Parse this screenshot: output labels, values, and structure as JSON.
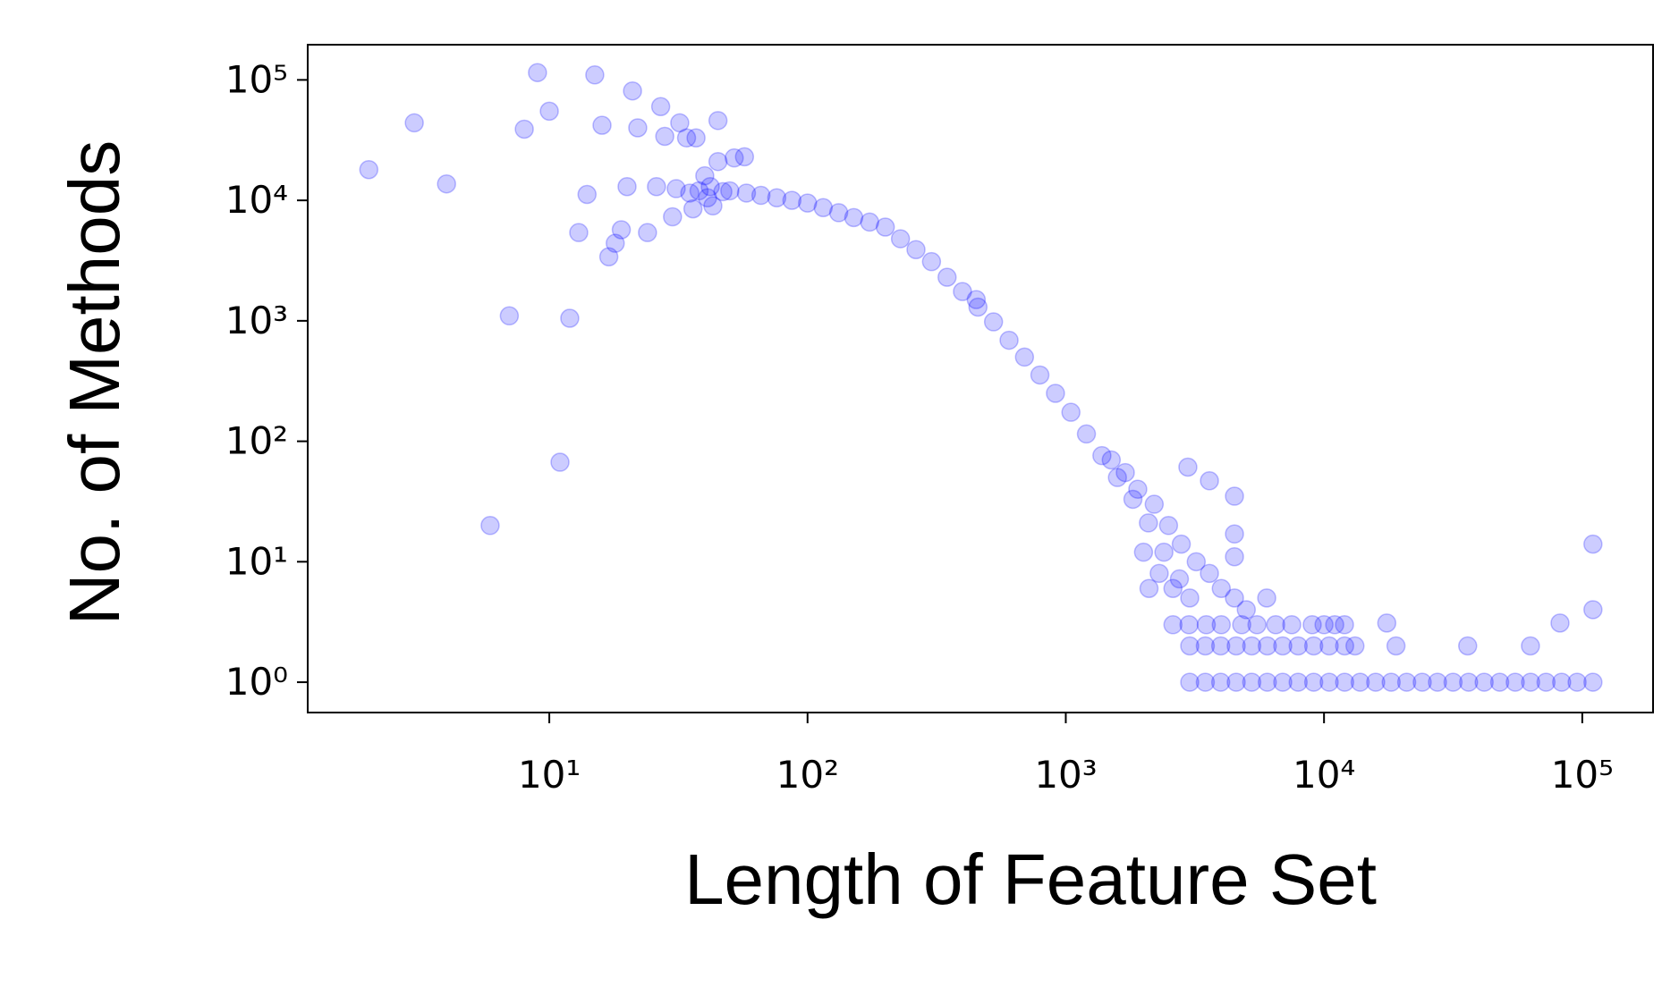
{
  "chart_data": {
    "type": "scatter",
    "x_label": "Length of Feature Set",
    "y_label": "No. of Methods",
    "log_x": true,
    "log_y": true,
    "grid": false,
    "color": "#0000ff",
    "xlim": [
      1.16,
      188000
    ],
    "ylim": [
      0.56,
      196000
    ],
    "xticks": [
      {
        "value": 10,
        "label": "10¹"
      },
      {
        "value": 100,
        "label": "10²"
      },
      {
        "value": 1000,
        "label": "10³"
      },
      {
        "value": 10000,
        "label": "10⁴"
      },
      {
        "value": 100000,
        "label": "10⁵"
      }
    ],
    "yticks": [
      {
        "value": 1,
        "label": "10⁰"
      },
      {
        "value": 10,
        "label": "10¹"
      },
      {
        "value": 100,
        "label": "10²"
      },
      {
        "value": 1000,
        "label": "10³"
      },
      {
        "value": 10000,
        "label": "10⁴"
      },
      {
        "value": 100000,
        "label": "10⁵"
      }
    ],
    "x": [
      2,
      3,
      4,
      5.9,
      7,
      8,
      9,
      10,
      11,
      12,
      13,
      14,
      15,
      16,
      17,
      18,
      19,
      20,
      21,
      22,
      24,
      26,
      27,
      28,
      30,
      32,
      34,
      35,
      37,
      40,
      43,
      45,
      45,
      52,
      57,
      31,
      38,
      42,
      47,
      36,
      41,
      50,
      58,
      66,
      76,
      87,
      100,
      115,
      132,
      151,
      174,
      200,
      229,
      263,
      302,
      347,
      398,
      457,
      525,
      603,
      692,
      794,
      912,
      1047,
      1202,
      1380,
      1585,
      1820,
      2089,
      2399,
      2754,
      3020,
      450,
      1500,
      1700,
      1900,
      2200,
      2500,
      2800,
      3200,
      3600,
      4000,
      4500,
      5000,
      6000,
      2000,
      2300,
      2600,
      3000,
      3500,
      4000,
      4800,
      5500,
      6500,
      7500,
      9000,
      10000,
      11000,
      12000,
      2100,
      2600,
      2970,
      3600,
      4500,
      4500,
      4500,
      17500,
      19000,
      36000,
      63000,
      82000,
      110000,
      110000,
      3020,
      3470,
      3980,
      4570,
      5250,
      6030,
      6920,
      7940,
      9120,
      10470,
      12020,
      13180,
      3020,
      3470,
      3980,
      4570,
      5250,
      6030,
      6920,
      7940,
      9120,
      10470,
      12020,
      13800,
      15850,
      18200,
      20900,
      24000,
      27500,
      31600,
      36300,
      41700,
      47900,
      55000,
      63100,
      72400,
      83200,
      95500,
      110000
    ],
    "y": [
      18000,
      44000,
      13700,
      20,
      1100,
      39000,
      115000,
      55000,
      67,
      1050,
      5400,
      11200,
      110000,
      42000,
      3400,
      4400,
      5700,
      13000,
      81000,
      40000,
      5400,
      13000,
      60000,
      34000,
      7300,
      44000,
      33000,
      11500,
      33000,
      16000,
      9000,
      46000,
      21000,
      22500,
      23000,
      12500,
      12000,
      13000,
      11800,
      8500,
      10500,
      12000,
      11500,
      11000,
      10500,
      10000,
      9500,
      8700,
      7900,
      7200,
      6600,
      6000,
      4800,
      3900,
      3100,
      2300,
      1750,
      1300,
      980,
      690,
      500,
      355,
      250,
      174,
      115,
      76,
      50,
      33,
      21,
      12,
      7.2,
      5,
      1500,
      70,
      55,
      40,
      30,
      20,
      14,
      10,
      8,
      6,
      5,
      4,
      5,
      12,
      8,
      6,
      3,
      3,
      3,
      3,
      3,
      3,
      3,
      3,
      3,
      3,
      3,
      6,
      3,
      61,
      47,
      35,
      17,
      11,
      3.1,
      2,
      2,
      2,
      3.1,
      14,
      4,
      2,
      2,
      2,
      2,
      2,
      2,
      2,
      2,
      2,
      2,
      2,
      2,
      1,
      1,
      1,
      1,
      1,
      1,
      1,
      1,
      1,
      1,
      1,
      1,
      1,
      1,
      1,
      1,
      1,
      1,
      1,
      1,
      1,
      1,
      1,
      1,
      1,
      1,
      1
    ]
  }
}
